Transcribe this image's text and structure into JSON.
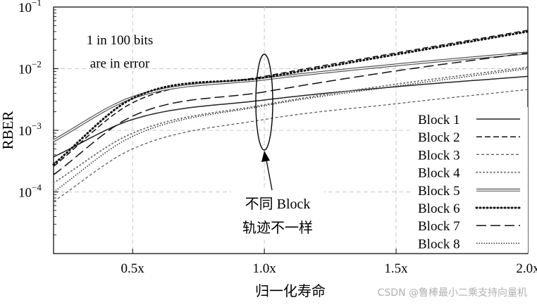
{
  "chart_data": {
    "type": "line",
    "title": "",
    "xlabel": "归一化寿命",
    "ylabel": "RBER",
    "yscale": "log",
    "grid": true,
    "legend_position": "bottom-right",
    "xlim": [
      0.2,
      2.0
    ],
    "ylim": [
      1e-05,
      0.1
    ],
    "x_ticks": [
      {
        "value": 0.5,
        "label": "0.5x"
      },
      {
        "value": 1.0,
        "label": "1.0x"
      },
      {
        "value": 1.5,
        "label": "1.5x"
      },
      {
        "value": 2.0,
        "label": "2.0x"
      }
    ],
    "y_ticks": [
      {
        "value": 0.1,
        "base": "10",
        "exp": "−1"
      },
      {
        "value": 0.01,
        "base": "10",
        "exp": "−2"
      },
      {
        "value": 0.001,
        "base": "10",
        "exp": "−3"
      },
      {
        "value": 0.0001,
        "base": "10",
        "exp": "−4"
      }
    ],
    "series": [
      {
        "name": "Block 1",
        "style": "solid",
        "x": [
          0.2,
          0.5,
          1.0,
          1.5,
          2.0
        ],
        "y": [
          0.00037,
          0.0015,
          0.0031,
          0.0051,
          0.0075
        ]
      },
      {
        "name": "Block 2",
        "style": "dash",
        "x": [
          0.2,
          0.5,
          1.0,
          1.5,
          2.0
        ],
        "y": [
          0.00026,
          0.0028,
          0.0075,
          0.018,
          0.042
        ]
      },
      {
        "name": "Block 3",
        "style": "fine-dash",
        "x": [
          0.2,
          0.5,
          1.0,
          1.5,
          2.0
        ],
        "y": [
          7e-05,
          0.0005,
          0.0015,
          0.0027,
          0.0046
        ]
      },
      {
        "name": "Block 4",
        "style": "dotted",
        "x": [
          0.2,
          0.5,
          1.0,
          1.5,
          2.0
        ],
        "y": [
          0.00014,
          0.0009,
          0.0026,
          0.0056,
          0.0106
        ]
      },
      {
        "name": "Block 5",
        "style": "double-line",
        "x": [
          0.2,
          0.5,
          1.0,
          1.5,
          2.0
        ],
        "y": [
          0.00068,
          0.0034,
          0.0068,
          0.0115,
          0.018
        ]
      },
      {
        "name": "Block 6",
        "style": "bold-dots",
        "x": [
          0.2,
          0.5,
          1.0,
          1.5,
          2.0
        ],
        "y": [
          0.00028,
          0.0033,
          0.0072,
          0.017,
          0.04
        ]
      },
      {
        "name": "Block 7",
        "style": "long-dash",
        "x": [
          0.2,
          0.5,
          1.0,
          1.5,
          2.0
        ],
        "y": [
          0.00019,
          0.0017,
          0.0042,
          0.0092,
          0.018
        ]
      },
      {
        "name": "Block 8",
        "style": "dense-dots",
        "x": [
          0.2,
          0.5,
          1.0,
          1.5,
          2.0
        ],
        "y": [
          0.0001,
          0.0008,
          0.0025,
          0.0052,
          0.01
        ]
      }
    ],
    "annotations": {
      "top_note": [
        "1 in 100 bits",
        "are in error"
      ],
      "callout": [
        "不同 Block",
        "轨迹不一样"
      ]
    }
  },
  "watermark": "CSDN @鲁棒最小二乘支持向量机"
}
